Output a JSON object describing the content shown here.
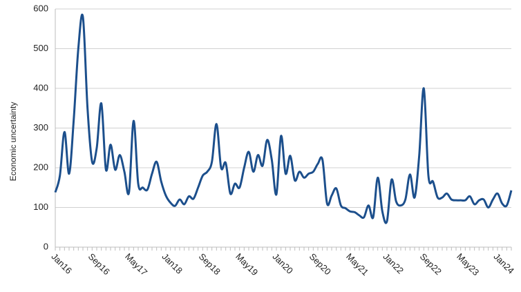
{
  "chart_data": {
    "type": "line",
    "y_label": "Economic uncertainty",
    "categories": [
      "Jan16",
      null,
      null,
      null,
      null,
      null,
      null,
      null,
      "Sep16",
      null,
      null,
      null,
      null,
      null,
      null,
      null,
      "May17",
      null,
      null,
      null,
      null,
      null,
      null,
      null,
      "Jan18",
      null,
      null,
      null,
      null,
      null,
      null,
      null,
      "Sep18",
      null,
      null,
      null,
      null,
      null,
      null,
      null,
      "May19",
      null,
      null,
      null,
      null,
      null,
      null,
      null,
      "Jan20",
      null,
      null,
      null,
      null,
      null,
      null,
      null,
      "Sep20",
      null,
      null,
      null,
      null,
      null,
      null,
      null,
      "May21",
      null,
      null,
      null,
      null,
      null,
      null,
      null,
      "Jan22",
      null,
      null,
      null,
      null,
      null,
      null,
      null,
      "Sep22",
      null,
      null,
      null,
      null,
      null,
      null,
      null,
      "May23",
      null,
      null,
      null,
      null,
      null,
      null,
      null,
      "Jan24",
      null,
      null,
      null
    ],
    "series": [
      {
        "color": "#1c4f8c",
        "values": [
          138,
          180,
          290,
          185,
          320,
          500,
          580,
          350,
          215,
          250,
          362,
          195,
          258,
          195,
          232,
          190,
          138,
          318,
          160,
          150,
          145,
          185,
          215,
          165,
          130,
          112,
          104,
          120,
          108,
          128,
          122,
          150,
          180,
          190,
          215,
          310,
          200,
          212,
          135,
          160,
          150,
          200,
          240,
          190,
          232,
          205,
          270,
          220,
          133,
          280,
          185,
          230,
          168,
          190,
          175,
          185,
          190,
          210,
          220,
          110,
          130,
          148,
          105,
          98,
          90,
          88,
          80,
          75,
          105,
          75,
          175,
          90,
          65,
          170,
          115,
          105,
          120,
          183,
          125,
          230,
          400,
          180,
          165,
          125,
          125,
          135,
          120,
          118,
          118,
          118,
          128,
          108,
          118,
          120,
          100,
          120,
          135,
          110,
          105,
          143
        ]
      }
    ],
    "ylim": [
      0,
      600
    ],
    "yticks": [
      0,
      100,
      200,
      300,
      400,
      500,
      600
    ],
    "grid": true
  }
}
